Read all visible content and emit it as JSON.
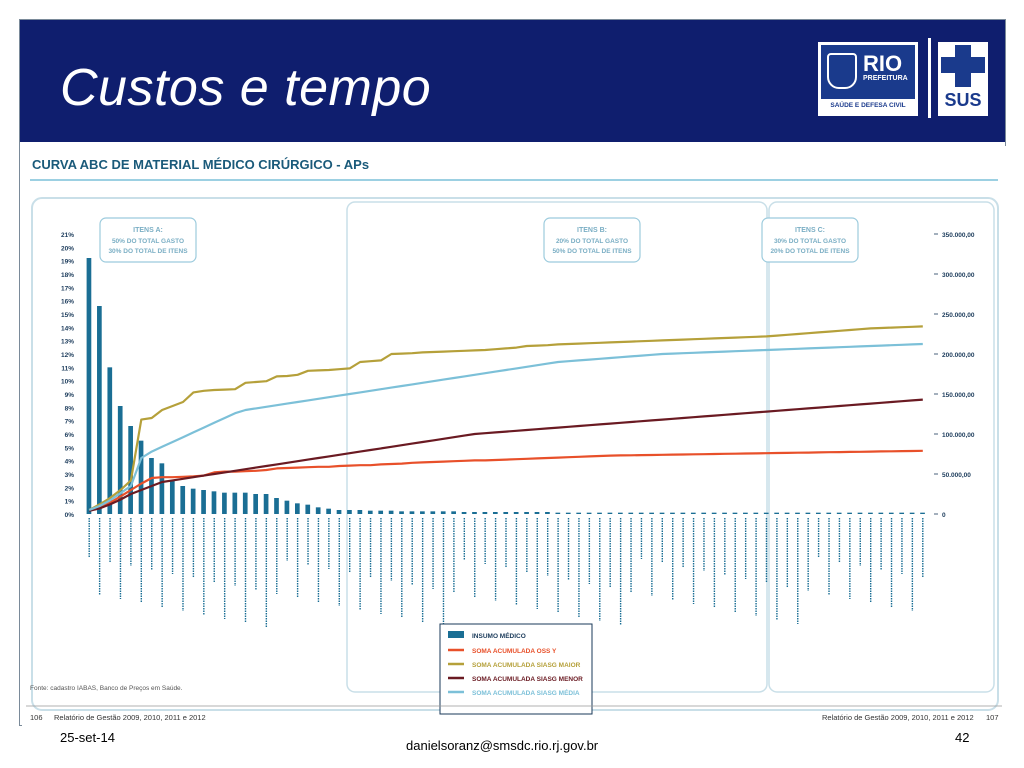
{
  "slide": {
    "title": "Custos e tempo",
    "footer_date": "25-set-14",
    "footer_email": "danielsoranz@smsdc.rio.rj.gov.br",
    "footer_page": "42"
  },
  "logos": {
    "rio_text": "RIO",
    "rio_sub": "PREFEITURA",
    "rio_bar": "SAÚDE E DEFESA CIVIL",
    "sus_text": "SUS"
  },
  "colors": {
    "header_bg": "#0f1e6e",
    "bar": "#1a6e94",
    "oss": "#e8502a",
    "siasg_maior": "#b5a03a",
    "siasg_menor": "#6a1a22",
    "siasg_media": "#7cc0d8"
  },
  "page_meta": {
    "left_num": "106",
    "left_text": "Relatório de Gestão 2009, 2010, 2011 e 2012",
    "right_text": "Relatório de Gestão 2009, 2010, 2011 e 2012",
    "right_num": "107",
    "source": "Fonte: cadastro IABAS, Banco de Preços em Saúde."
  },
  "chart_data": {
    "type": "bar",
    "title": "CURVA ABC DE MATERIAL MÉDICO CIRÚRGICO - APs",
    "y_left_ticks": [
      "0%",
      "1%",
      "2%",
      "3%",
      "4%",
      "5%",
      "6%",
      "7%",
      "8%",
      "9%",
      "10%",
      "11%",
      "12%",
      "13%",
      "14%",
      "15%",
      "16%",
      "17%",
      "18%",
      "19%",
      "20%",
      "21%"
    ],
    "y_left_range": [
      0,
      21
    ],
    "y_right_ticks": [
      "0",
      "50.000,00",
      "100.000,00",
      "150.000,00",
      "200.000,00",
      "250.000,00",
      "300.000,00",
      "350.000,00"
    ],
    "y_right_range": [
      0,
      350000
    ],
    "groups": [
      {
        "label": "ITENS A:",
        "line1": "50% DO TOTAL GASTO",
        "line2": "30% DO TOTAL DE ITENS"
      },
      {
        "label": "ITENS B:",
        "line1": "20% DO TOTAL GASTO",
        "line2": "50% DO TOTAL DE ITENS"
      },
      {
        "label": "ITENS C:",
        "line1": "30% DO TOTAL GASTO",
        "line2": "20% DO TOTAL DE ITENS"
      }
    ],
    "bars_pct": [
      19.2,
      15.6,
      11.0,
      8.1,
      6.6,
      5.5,
      4.2,
      3.8,
      2.5,
      2.1,
      1.9,
      1.8,
      1.7,
      1.6,
      1.6,
      1.6,
      1.5,
      1.5,
      1.2,
      1.0,
      0.8,
      0.7,
      0.5,
      0.4,
      0.3,
      0.3,
      0.3,
      0.25,
      0.25,
      0.25,
      0.2,
      0.2,
      0.2,
      0.2,
      0.2,
      0.2,
      0.15,
      0.15,
      0.15,
      0.15,
      0.15,
      0.15,
      0.15,
      0.15,
      0.15,
      0.1,
      0.1,
      0.1,
      0.1,
      0.1,
      0.1,
      0.1,
      0.1,
      0.1,
      0.1,
      0.1,
      0.1,
      0.1,
      0.1,
      0.1,
      0.1,
      0.1,
      0.1,
      0.1,
      0.1,
      0.1,
      0.1,
      0.1,
      0.1,
      0.1,
      0.1,
      0.1,
      0.1,
      0.1,
      0.1,
      0.1,
      0.1,
      0.1,
      0.1,
      0.1,
      0.1
    ],
    "series": [
      {
        "name": "SOMA ACUMULADA OSS Y",
        "color": "#e8502a",
        "values": [
          5000,
          8000,
          14000,
          22000,
          30000,
          38000,
          45000,
          46000,
          46000,
          46500,
          47000,
          48000,
          52000,
          53000,
          53000,
          53500,
          54000,
          55000,
          57000,
          57500,
          58000,
          58500,
          59000,
          59000,
          60000,
          60500,
          61000,
          61000,
          62000,
          62500,
          63000,
          64000,
          64500,
          65000,
          65500,
          66000,
          66500,
          67000,
          67000,
          67500,
          68000,
          68500,
          69000,
          69500,
          70000,
          70500,
          71000,
          71500,
          72000,
          72500,
          73000,
          73200,
          73400,
          73600,
          73800,
          74000,
          74200,
          74400,
          74600,
          74800,
          75000,
          75200,
          75400,
          75600,
          75800,
          76000,
          76200,
          76400,
          76600,
          76800,
          77000,
          77200,
          77400,
          77600,
          77800,
          78000,
          78200,
          78400,
          78600,
          78800,
          79000
        ]
      },
      {
        "name": "SOMA ACUMULADA SIASG MAIOR",
        "color": "#b5a03a",
        "values": [
          5000,
          12000,
          20000,
          30000,
          42000,
          118000,
          120000,
          130000,
          135000,
          140000,
          152000,
          154000,
          155000,
          155500,
          156000,
          164000,
          165000,
          166000,
          172000,
          172500,
          174000,
          179000,
          179500,
          180000,
          181000,
          182000,
          190000,
          191000,
          192000,
          200000,
          200500,
          201000,
          202000,
          202500,
          203000,
          203500,
          204000,
          204500,
          205000,
          206000,
          207000,
          208000,
          210000,
          210500,
          211000,
          212000,
          212500,
          213000,
          213500,
          214000,
          214500,
          215000,
          215500,
          216000,
          216500,
          217000,
          217500,
          218000,
          218500,
          219000,
          219500,
          220000,
          220500,
          221000,
          221500,
          222000,
          223000,
          224000,
          225000,
          226000,
          227000,
          228000,
          229000,
          230000,
          231000,
          232000,
          232500,
          233000,
          233500,
          234000,
          234500
        ]
      },
      {
        "name": "SOMA ACUMULADA SIASG MENOR",
        "color": "#6a1a22",
        "values": [
          4000,
          7000,
          12000,
          18000,
          25000,
          30000,
          35000,
          40000,
          42000,
          44000,
          46000,
          48000,
          50000,
          52000,
          54000,
          56000,
          58000,
          60000,
          62000,
          64000,
          66000,
          68000,
          70000,
          72000,
          74000,
          76000,
          78000,
          80000,
          82000,
          84000,
          86000,
          88000,
          90000,
          92000,
          94000,
          96000,
          98000,
          100000,
          101000,
          102000,
          103000,
          104000,
          105000,
          106000,
          107000,
          108000,
          109000,
          110000,
          111000,
          112000,
          113000,
          114000,
          115000,
          116000,
          117000,
          118000,
          119000,
          120000,
          121000,
          122000,
          123000,
          124000,
          125000,
          126000,
          127000,
          128000,
          129000,
          130000,
          131000,
          132000,
          133000,
          134000,
          135000,
          136000,
          137000,
          138000,
          139000,
          140000,
          141000,
          142000,
          143000
        ]
      },
      {
        "name": "SOMA ACUMULADA SIASG MÉDIA",
        "color": "#7cc0d8",
        "values": [
          5000,
          10000,
          17000,
          26000,
          35000,
          70000,
          78000,
          84000,
          90000,
          96000,
          102000,
          108000,
          114000,
          120000,
          126000,
          130000,
          132000,
          134000,
          136000,
          138000,
          140000,
          142000,
          144000,
          146000,
          148000,
          150000,
          152000,
          154000,
          156000,
          158000,
          160000,
          162000,
          164000,
          166000,
          168000,
          170000,
          172000,
          174000,
          176000,
          178000,
          180000,
          182000,
          184000,
          186000,
          188000,
          190000,
          191000,
          192000,
          193000,
          194000,
          195000,
          196000,
          197000,
          198000,
          199000,
          200000,
          200500,
          201000,
          201500,
          202000,
          202500,
          203000,
          203500,
          204000,
          204500,
          205000,
          205500,
          206000,
          206500,
          207000,
          207500,
          208000,
          208500,
          209000,
          209500,
          210000,
          210500,
          211000,
          211500,
          212000,
          212500
        ]
      }
    ],
    "legend_title": "INSUMO MÉDICO",
    "legend_placement": "bottom-right"
  }
}
